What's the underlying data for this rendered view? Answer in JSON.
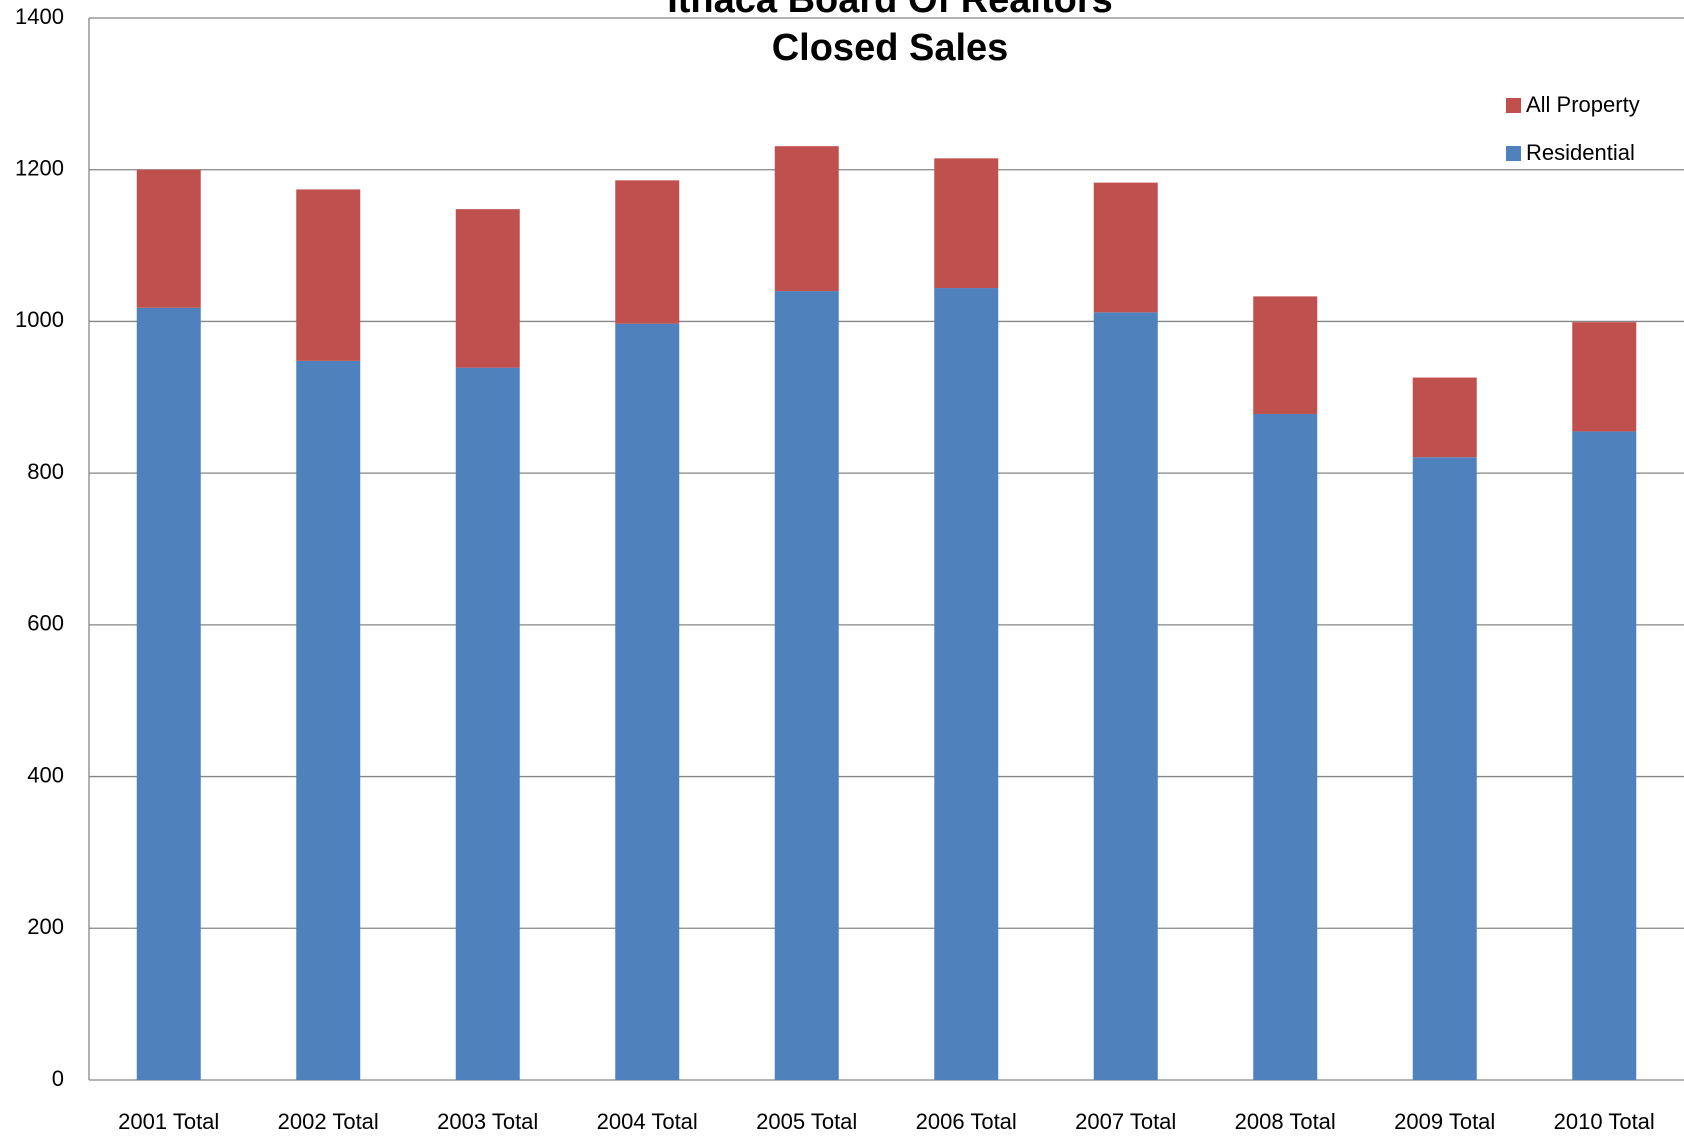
{
  "chart_data": {
    "type": "stacked_bar",
    "title": "Ithaca Board Of Realtors",
    "subtitle": "Closed Sales",
    "categories": [
      "2001 Total",
      "2002 Total",
      "2003 Total",
      "2004 Total",
      "2005 Total",
      "2006 Total",
      "2007 Total",
      "2008 Total",
      "2009 Total",
      "2010 Total"
    ],
    "series": [
      {
        "name": "Residential",
        "color": "#4f81bd",
        "values": [
          1018,
          948,
          939,
          997,
          1040,
          1044,
          1012,
          878,
          821,
          855
        ]
      },
      {
        "name": "All Property",
        "color": "#c0504d",
        "values": [
          182,
          226,
          209,
          189,
          191,
          171,
          171,
          155,
          105,
          144
        ]
      }
    ],
    "ylim": [
      0,
      1400
    ],
    "yticks": [
      0,
      200,
      400,
      600,
      800,
      1000,
      1200,
      1400
    ],
    "grid": true,
    "legend": "top-right"
  }
}
